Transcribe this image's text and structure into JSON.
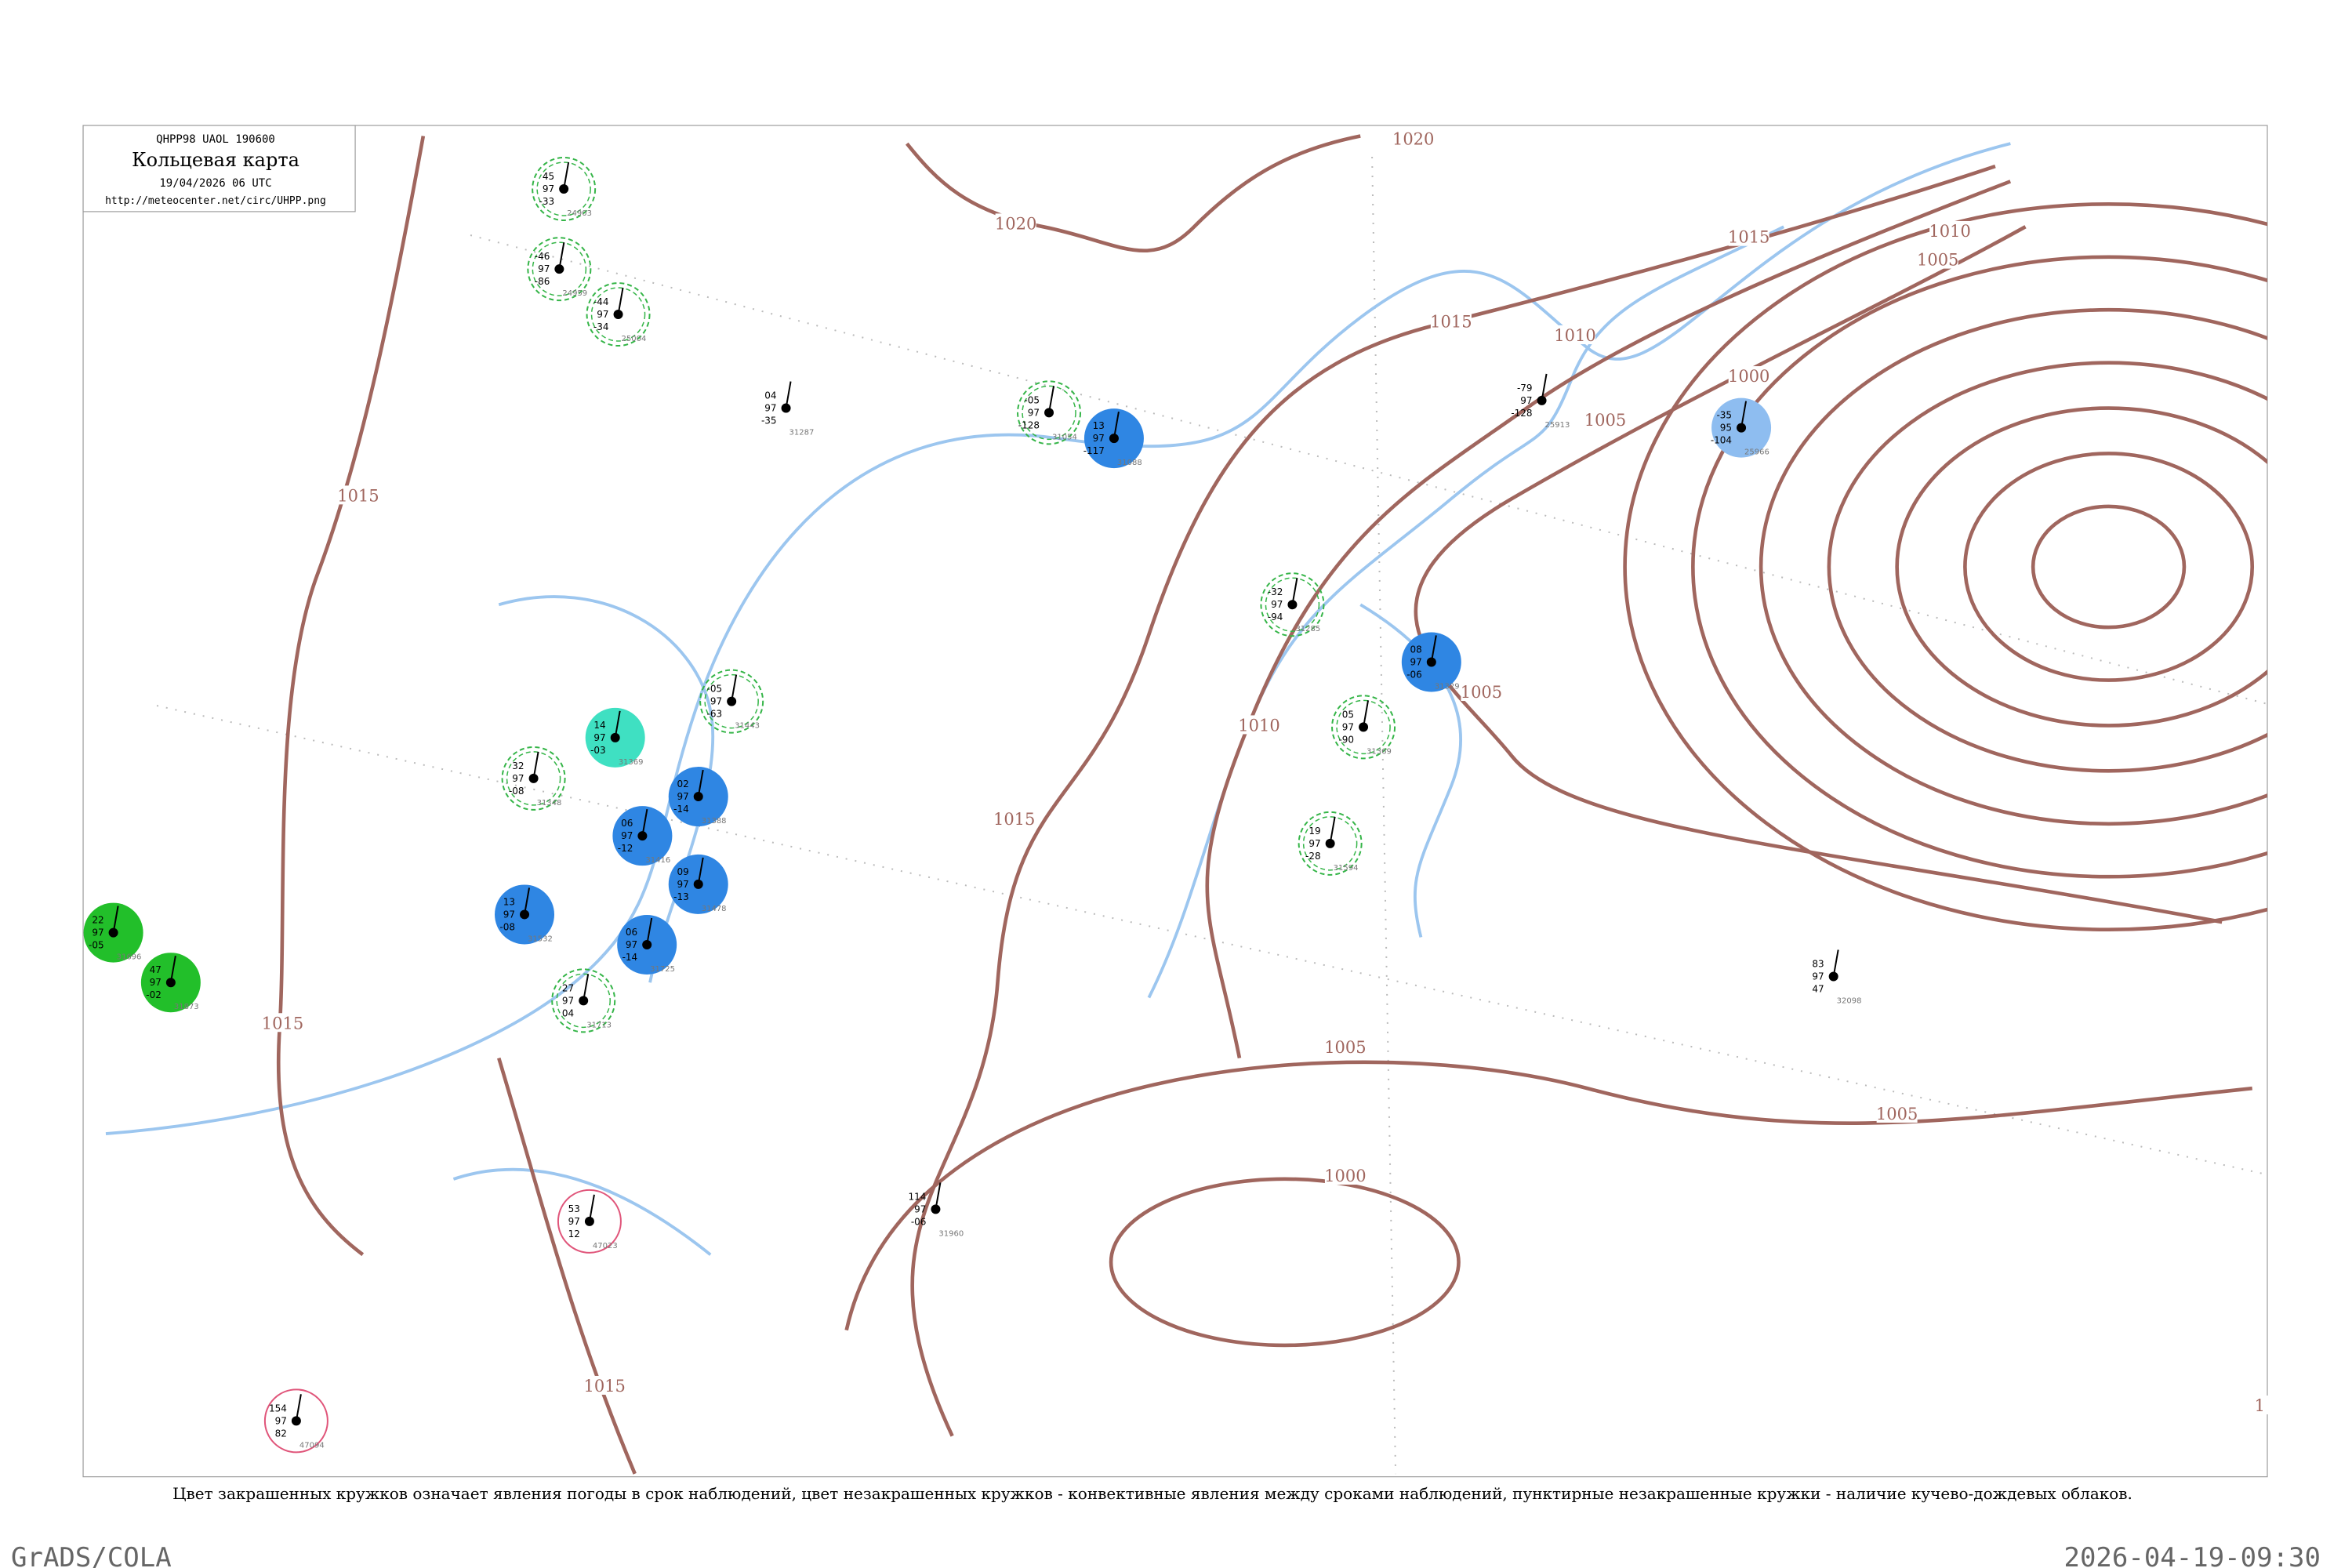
{
  "header": {
    "code": "QHPP98  UAOL  190600",
    "title": "Кольцевая карта",
    "time": "19/04/2026 06 UTC",
    "url": "http://meteocenter.net/circ/UHPP.png"
  },
  "isobar_labels": [
    1020,
    1020,
    1015,
    1015,
    1010,
    1005,
    1010,
    1005,
    1000,
    1015,
    1010,
    1005,
    1015,
    1015,
    1005,
    1000,
    1005,
    1015,
    1
  ],
  "stations": [
    {
      "t": "-35",
      "p": "95",
      "d": "-104",
      "id": "25966"
    },
    {
      "t": "13",
      "p": "97",
      "d": "-117",
      "id": "31088"
    },
    {
      "t": "08",
      "p": "97",
      "d": "-06",
      "id": "31329"
    },
    {
      "t": "14",
      "p": "97",
      "d": "-03",
      "id": "31369"
    },
    {
      "t": "02",
      "p": "97",
      "d": "-14",
      "id": "31388"
    },
    {
      "t": "06",
      "p": "97",
      "d": "-12",
      "id": "31416"
    },
    {
      "t": "09",
      "p": "97",
      "d": "-13",
      "id": "31478"
    },
    {
      "t": "13",
      "p": "97",
      "d": "-08",
      "id": "31532"
    },
    {
      "t": "06",
      "p": "97",
      "d": "-14",
      "id": "31725"
    },
    {
      "t": "22",
      "p": "97",
      "d": "-05",
      "id": "31696"
    },
    {
      "t": "47",
      "p": "97",
      "d": "-02",
      "id": "31873"
    },
    {
      "t": "-05",
      "p": "97",
      "d": "-128",
      "id": "31054"
    },
    {
      "t": "-32",
      "p": "97",
      "d": "-94",
      "id": "31285"
    },
    {
      "t": "05",
      "p": "97",
      "d": "-90",
      "id": "31369"
    },
    {
      "t": "19",
      "p": "97",
      "d": "-28",
      "id": "31594"
    },
    {
      "t": "45",
      "p": "97",
      "d": "-33",
      "id": "24903"
    },
    {
      "t": "27",
      "p": "97",
      "d": "04",
      "id": "31713"
    },
    {
      "t": "-46",
      "p": "97",
      "d": "-86",
      "id": "24959"
    },
    {
      "t": "-44",
      "p": "97",
      "d": "-34",
      "id": "25004"
    },
    {
      "t": "-05",
      "p": "97",
      "d": "-63",
      "id": "31443"
    },
    {
      "t": "32",
      "p": "97",
      "d": "-08",
      "id": "31348"
    },
    {
      "t": "53",
      "p": "97",
      "d": "12",
      "id": "47023"
    },
    {
      "t": "154",
      "p": "97",
      "d": "82",
      "id": "47094"
    },
    {
      "t": "114",
      "p": "97",
      "d": "-06",
      "id": "31960"
    },
    {
      "t": "83",
      "p": "97",
      "d": "47",
      "id": "32098"
    },
    {
      "t": "-79",
      "p": "97",
      "d": "-128",
      "id": "25913"
    },
    {
      "t": "04",
      "p": "97",
      "d": "-35",
      "id": "31287"
    }
  ],
  "caption": "Цвет закрашенных кружков означает явления погоды в срок наблюдений, цвет незакрашенных кружков - конвективные явления между сроками наблюдений, пунктирные незакрашенные кружки - наличие кучево-дождевых облаков.",
  "footer": {
    "left": "GrADS/COLA",
    "right": "2026-04-19-09:30"
  }
}
